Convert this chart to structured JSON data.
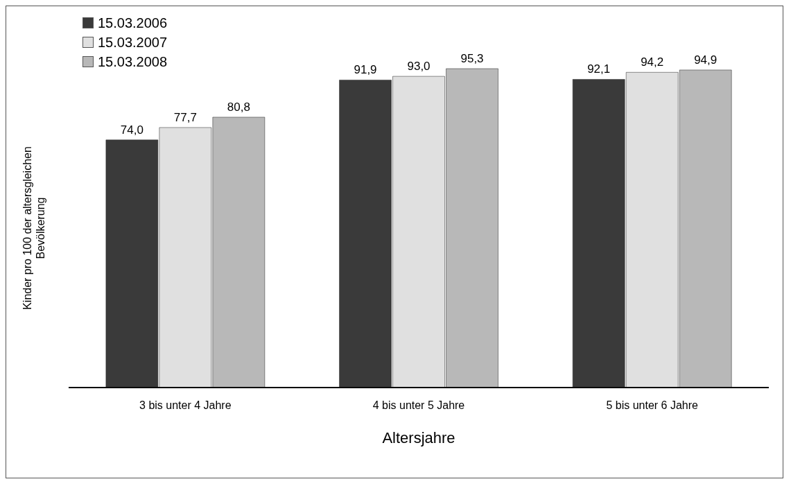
{
  "chart_data": {
    "type": "bar",
    "xlabel": "Altersjahre",
    "ylabel": "Kinder pro 100 der altersgleichen\nBevölkerung",
    "categories": [
      "3 bis unter 4 Jahre",
      "4 bis unter 5 Jahre",
      "5 bis unter 6 Jahre"
    ],
    "series": [
      {
        "name": "15.03.2006",
        "color": "#3a3a3a",
        "values": [
          74.0,
          91.9,
          92.1
        ],
        "value_labels": [
          "74,0",
          "91,9",
          "92,1"
        ]
      },
      {
        "name": "15.03.2007",
        "color": "#e0e0e0",
        "values": [
          77.7,
          93.0,
          94.2
        ],
        "value_labels": [
          "77,7",
          "93,0",
          "94,2"
        ]
      },
      {
        "name": "15.03.2008",
        "color": "#b8b8b8",
        "values": [
          80.8,
          95.3,
          94.9
        ],
        "value_labels": [
          "80,8",
          "95,3",
          "94,9"
        ]
      }
    ],
    "relative": false,
    "legend": "top left"
  }
}
